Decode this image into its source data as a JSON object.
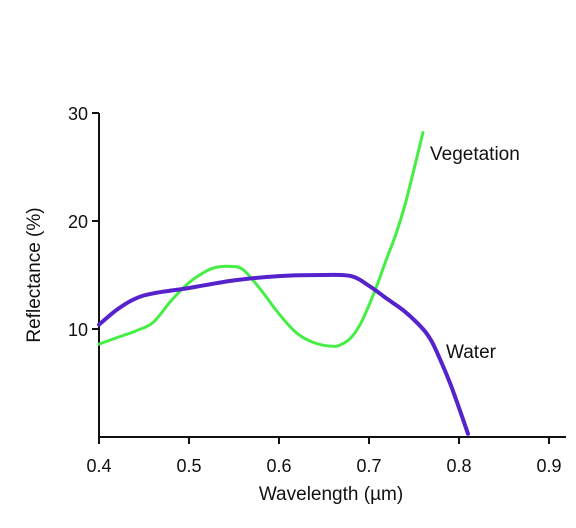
{
  "chart_data": {
    "type": "line",
    "title": "",
    "xlabel": "Wavelength (µm)",
    "ylabel": "Reflectance (%)",
    "xlim": [
      0.4,
      0.9
    ],
    "ylim": [
      0,
      30
    ],
    "xticks": [
      "0.4",
      "0.5",
      "0.6",
      "0.7",
      "0.8",
      "0.9"
    ],
    "yticks": [
      "10",
      "20",
      "30"
    ],
    "grid": false,
    "legend": "none",
    "series": [
      {
        "name": "Vegetation",
        "color": "#44ee44",
        "x": [
          0.4,
          0.42,
          0.44,
          0.46,
          0.48,
          0.5,
          0.52,
          0.53,
          0.545,
          0.56,
          0.58,
          0.6,
          0.62,
          0.64,
          0.66,
          0.67,
          0.68,
          0.69,
          0.7,
          0.71,
          0.72,
          0.73,
          0.74,
          0.75,
          0.76
        ],
        "values": [
          8.6,
          9.2,
          9.8,
          10.6,
          12.6,
          14.3,
          15.4,
          15.7,
          15.8,
          15.5,
          13.6,
          11.4,
          9.6,
          8.7,
          8.4,
          8.6,
          9.2,
          10.4,
          12.2,
          14.3,
          16.6,
          18.8,
          21.5,
          24.8,
          28.2
        ]
      },
      {
        "name": "Water",
        "color": "#5522cc",
        "x": [
          0.4,
          0.42,
          0.44,
          0.46,
          0.5,
          0.55,
          0.6,
          0.65,
          0.68,
          0.7,
          0.72,
          0.74,
          0.76,
          0.77,
          0.78,
          0.79,
          0.8,
          0.81
        ],
        "values": [
          10.4,
          11.8,
          12.8,
          13.3,
          13.8,
          14.5,
          14.9,
          15.0,
          14.9,
          14.0,
          12.8,
          11.6,
          10.0,
          8.8,
          7.0,
          5.0,
          2.7,
          0.3
        ]
      }
    ]
  }
}
